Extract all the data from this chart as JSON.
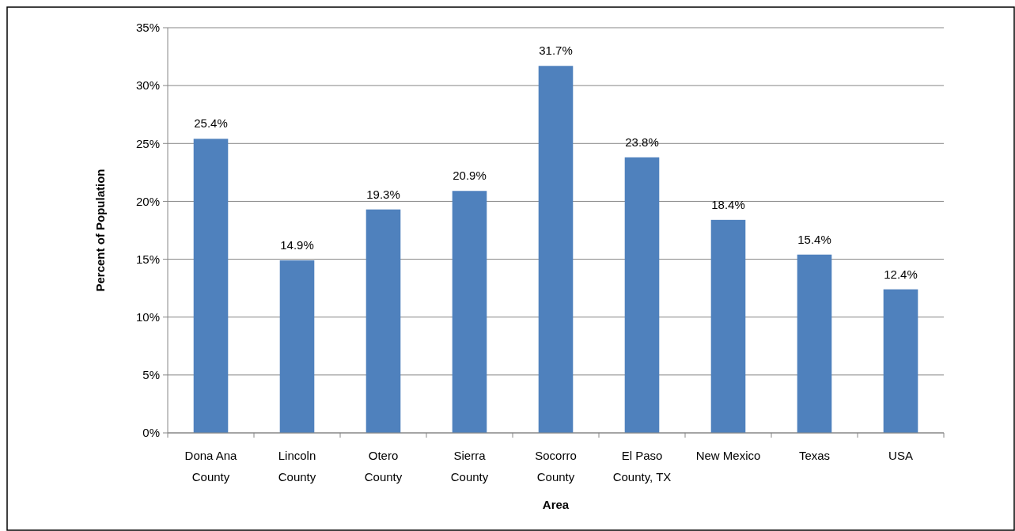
{
  "chart_data": {
    "type": "bar",
    "xlabel": "Area",
    "ylabel": "Percent of Population",
    "categories": [
      "Dona Ana County",
      "Lincoln County",
      "Otero County",
      "Sierra County",
      "Socorro County",
      "El Paso County, TX",
      "New Mexico",
      "Texas",
      "USA"
    ],
    "values": [
      25.4,
      14.9,
      19.3,
      20.9,
      31.7,
      23.8,
      18.4,
      15.4,
      12.4
    ],
    "value_labels": [
      "25.4%",
      "14.9%",
      "19.3%",
      "20.9%",
      "31.7%",
      "23.8%",
      "18.4%",
      "15.4%",
      "12.4%"
    ],
    "color": "#4f81bd",
    "ylim": [
      0,
      35
    ],
    "yticks": [
      {
        "value": 0,
        "label": "0%"
      },
      {
        "value": 5,
        "label": "5%"
      },
      {
        "value": 10,
        "label": "10%"
      },
      {
        "value": 15,
        "label": "15%"
      },
      {
        "value": 20,
        "label": "20%"
      },
      {
        "value": 25,
        "label": "25%"
      },
      {
        "value": 30,
        "label": "30%"
      },
      {
        "value": 35,
        "label": "35%"
      }
    ],
    "grid": "y"
  }
}
